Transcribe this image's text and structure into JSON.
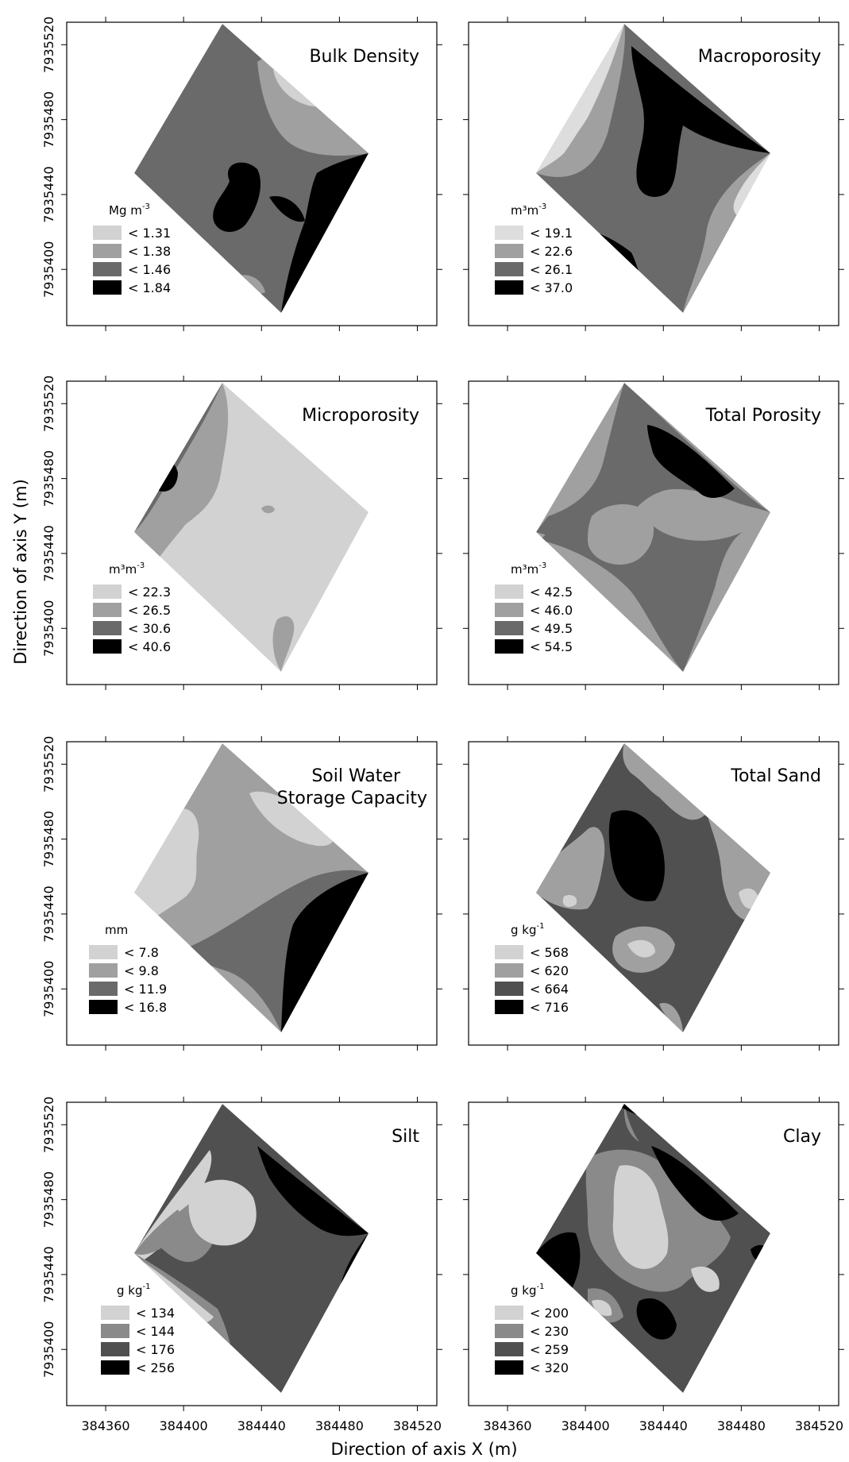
{
  "axes": {
    "x_title": "Direction of axis X (m)",
    "y_title": "Direction of axis Y (m)",
    "x_ticks": [
      "384360",
      "384400",
      "384440",
      "384480",
      "384520"
    ],
    "y_ticks": [
      "7935400",
      "7935440",
      "7935480",
      "7935520"
    ]
  },
  "chart_data": [
    {
      "type": "heatmap",
      "title": "Bulk Density",
      "unit": "Mg m",
      "unit_sup": "-3",
      "classes": [
        {
          "label": "< 1.31",
          "color": "#d2d2d2"
        },
        {
          "label": "< 1.38",
          "color": "#a0a0a0"
        },
        {
          "label": "< 1.46",
          "color": "#6a6a6a"
        },
        {
          "label": "< 1.84",
          "color": "#000000"
        }
      ],
      "xlim": [
        384340,
        384530
      ],
      "ylim": [
        7935370,
        7935532
      ]
    },
    {
      "type": "heatmap",
      "title": "Macroporosity",
      "unit": "m³m",
      "unit_sup": "-3",
      "classes": [
        {
          "label": "< 19.1",
          "color": "#dddddd"
        },
        {
          "label": "< 22.6",
          "color": "#a0a0a0"
        },
        {
          "label": "< 26.1",
          "color": "#6a6a6a"
        },
        {
          "label": "< 37.0",
          "color": "#000000"
        }
      ],
      "xlim": [
        384340,
        384530
      ],
      "ylim": [
        7935370,
        7935532
      ]
    },
    {
      "type": "heatmap",
      "title": "Microporosity",
      "unit": "m³m",
      "unit_sup": "-3",
      "classes": [
        {
          "label": "< 22.3",
          "color": "#d2d2d2"
        },
        {
          "label": "< 26.5",
          "color": "#a0a0a0"
        },
        {
          "label": "< 30.6",
          "color": "#6a6a6a"
        },
        {
          "label": "< 40.6",
          "color": "#000000"
        }
      ],
      "xlim": [
        384340,
        384530
      ],
      "ylim": [
        7935370,
        7935532
      ]
    },
    {
      "type": "heatmap",
      "title": "Total Porosity",
      "unit": "m³m",
      "unit_sup": "-3",
      "classes": [
        {
          "label": "< 42.5",
          "color": "#d2d2d2"
        },
        {
          "label": "< 46.0",
          "color": "#a0a0a0"
        },
        {
          "label": "< 49.5",
          "color": "#6a6a6a"
        },
        {
          "label": "< 54.5",
          "color": "#000000"
        }
      ],
      "xlim": [
        384340,
        384530
      ],
      "ylim": [
        7935370,
        7935532
      ]
    },
    {
      "type": "heatmap",
      "title": "Soil Water",
      "title2": "Storage Capacity",
      "unit": "mm",
      "unit_sup": "",
      "classes": [
        {
          "label": "< 7.8",
          "color": "#d2d2d2"
        },
        {
          "label": "< 9.8",
          "color": "#a0a0a0"
        },
        {
          "label": "< 11.9",
          "color": "#6a6a6a"
        },
        {
          "label": "< 16.8",
          "color": "#000000"
        }
      ],
      "xlim": [
        384340,
        384530
      ],
      "ylim": [
        7935370,
        7935532
      ]
    },
    {
      "type": "heatmap",
      "title": "Total Sand",
      "unit": "g kg",
      "unit_sup": "-1",
      "classes": [
        {
          "label": "< 568",
          "color": "#d2d2d2"
        },
        {
          "label": "< 620",
          "color": "#a0a0a0"
        },
        {
          "label": "< 664",
          "color": "#505050"
        },
        {
          "label": "< 716",
          "color": "#000000"
        }
      ],
      "xlim": [
        384340,
        384530
      ],
      "ylim": [
        7935370,
        7935532
      ]
    },
    {
      "type": "heatmap",
      "title": "Silt",
      "unit": "g kg",
      "unit_sup": "-1",
      "classes": [
        {
          "label": "< 134",
          "color": "#d2d2d2"
        },
        {
          "label": "< 144",
          "color": "#8a8a8a"
        },
        {
          "label": "< 176",
          "color": "#505050"
        },
        {
          "label": "< 256",
          "color": "#000000"
        }
      ],
      "xlim": [
        384340,
        384530
      ],
      "ylim": [
        7935370,
        7935532
      ]
    },
    {
      "type": "heatmap",
      "title": "Clay",
      "unit": "g kg",
      "unit_sup": "-1",
      "classes": [
        {
          "label": "< 200",
          "color": "#d2d2d2"
        },
        {
          "label": "< 230",
          "color": "#8a8a8a"
        },
        {
          "label": "< 259",
          "color": "#505050"
        },
        {
          "label": "< 320",
          "color": "#000000"
        }
      ],
      "xlim": [
        384340,
        384530
      ],
      "ylim": [
        7935370,
        7935532
      ]
    }
  ]
}
